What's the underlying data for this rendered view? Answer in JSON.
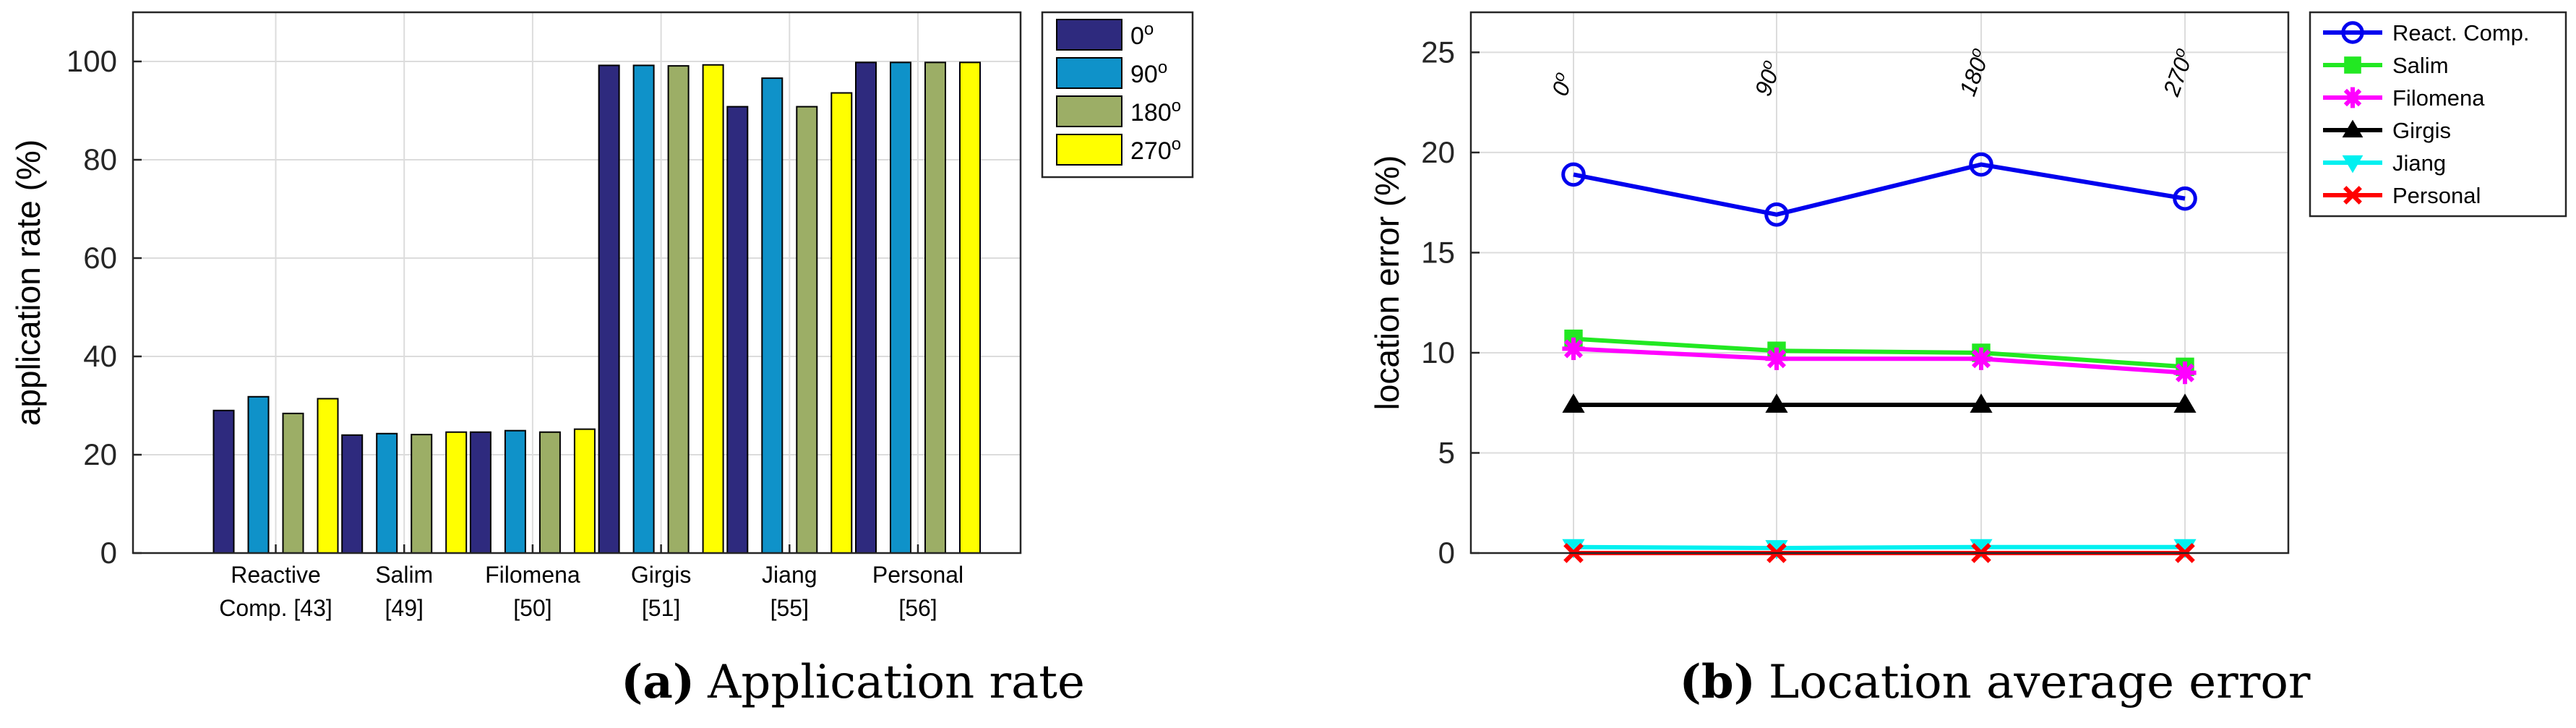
{
  "chart_data": [
    {
      "type": "bar",
      "ylabel": "application rate (%)",
      "ylim": [
        0,
        110
      ],
      "yticks": [
        "0",
        "20",
        "40",
        "60",
        "80",
        "100"
      ],
      "grid": true,
      "legend_position": "top-right",
      "categories": [
        {
          "line1": "Reactive",
          "line2": "Comp. [43]"
        },
        {
          "line1": "Salim",
          "line2": "[49]"
        },
        {
          "line1": "Filomena",
          "line2": "[50]"
        },
        {
          "line1": "Girgis",
          "line2": "[51]"
        },
        {
          "line1": "Jiang",
          "line2": "[55]"
        },
        {
          "line1": "Personal",
          "line2": "[56]"
        }
      ],
      "series": [
        {
          "name": "0",
          "color": "#2e2a7e",
          "values": [
            29,
            24,
            24.6,
            99.2,
            90.8,
            99.8
          ]
        },
        {
          "name": "90",
          "color": "#0f92c9",
          "values": [
            31.8,
            24.3,
            24.9,
            99.2,
            96.6,
            99.8
          ]
        },
        {
          "name": "180",
          "color": "#9cae66",
          "values": [
            28.4,
            24.1,
            24.6,
            99.1,
            90.8,
            99.8
          ]
        },
        {
          "name": "270",
          "color": "#ffff00",
          "values": [
            31.4,
            24.6,
            25.2,
            99.3,
            93.6,
            99.8
          ]
        }
      ],
      "legend_superscript": "o",
      "caption": {
        "label": "(a)",
        "text": "Application rate"
      }
    },
    {
      "type": "line",
      "ylabel": "location error (%)",
      "ylim": [
        0,
        27
      ],
      "yticks": [
        "0",
        "5",
        "10",
        "15",
        "20",
        "25"
      ],
      "grid": true,
      "legend_position": "outside-right",
      "x": [
        0,
        90,
        180,
        270
      ],
      "x_annotations": [
        "0",
        "90",
        "180",
        "270"
      ],
      "series": [
        {
          "name": "React. Comp.",
          "color": "#0000ee",
          "marker": "circle",
          "values": [
            18.9,
            16.9,
            19.4,
            17.7
          ]
        },
        {
          "name": "Salim",
          "color": "#22e822",
          "marker": "square",
          "values": [
            10.7,
            10.1,
            10.0,
            9.3
          ]
        },
        {
          "name": "Filomena",
          "color": "#ff00ff",
          "marker": "asterisk",
          "values": [
            10.2,
            9.7,
            9.7,
            9.0
          ]
        },
        {
          "name": "Girgis",
          "color": "#000000",
          "marker": "triangle-up",
          "values": [
            7.4,
            7.4,
            7.4,
            7.4
          ]
        },
        {
          "name": "Jiang",
          "color": "#00f0f0",
          "marker": "triangle-down",
          "values": [
            0.3,
            0.25,
            0.3,
            0.3
          ]
        },
        {
          "name": "Personal",
          "color": "#ff0000",
          "marker": "x",
          "values": [
            0,
            0,
            0,
            0
          ]
        }
      ],
      "caption": {
        "label": "(b)",
        "text": "Location average error"
      }
    }
  ]
}
